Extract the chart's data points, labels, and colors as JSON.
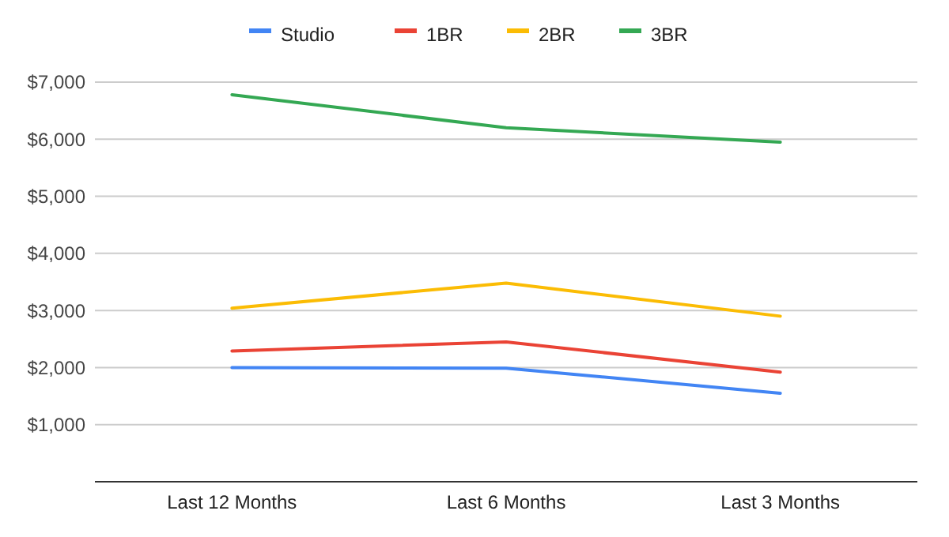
{
  "chart_data": {
    "type": "line",
    "categories": [
      "Last 12 Months",
      "Last 6 Months",
      "Last 3 Months"
    ],
    "series": [
      {
        "name": "Studio",
        "color": "#4285f4",
        "values": [
          2000,
          1990,
          1550
        ]
      },
      {
        "name": "1BR",
        "color": "#ea4335",
        "values": [
          2290,
          2450,
          1920
        ]
      },
      {
        "name": "2BR",
        "color": "#fbbc04",
        "values": [
          3040,
          3480,
          2900
        ]
      },
      {
        "name": "3BR",
        "color": "#34a853",
        "values": [
          6780,
          6200,
          5950
        ]
      }
    ],
    "ylim": [
      0,
      7000
    ],
    "yticks": [
      {
        "value": 1000,
        "label": "$1,000"
      },
      {
        "value": 2000,
        "label": "$2,000"
      },
      {
        "value": 3000,
        "label": "$3,000"
      },
      {
        "value": 4000,
        "label": "$4,000"
      },
      {
        "value": 5000,
        "label": "$5,000"
      },
      {
        "value": 6000,
        "label": "$6,000"
      },
      {
        "value": 7000,
        "label": "$7,000"
      }
    ],
    "grid": "y",
    "legend": "top",
    "marker": "none",
    "line_style": "solid"
  }
}
